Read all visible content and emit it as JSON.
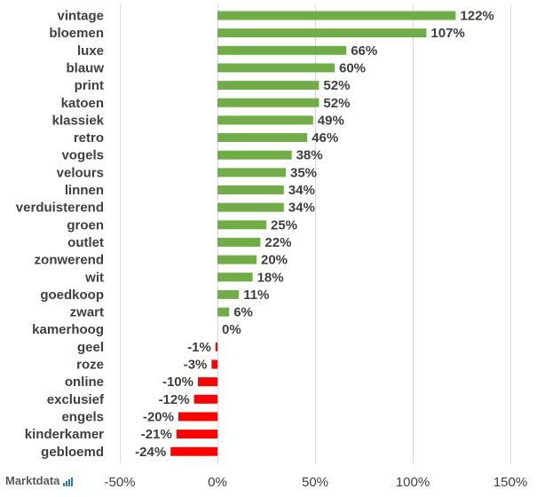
{
  "brand": {
    "name": "Marktdata",
    "accent": "#2e75b6"
  },
  "colors": {
    "positive": "#70ad47",
    "negative": "#ff0000"
  },
  "chart_data": {
    "type": "bar",
    "orientation": "horizontal",
    "title": "",
    "xlabel": "",
    "ylabel": "",
    "xlim": [
      -50,
      150
    ],
    "x_ticks": [
      -50,
      0,
      50,
      100,
      150
    ],
    "x_tick_labels": [
      "-50%",
      "0%",
      "50%",
      "100%",
      "150%"
    ],
    "grid": true,
    "legend": "none",
    "categories": [
      "vintage",
      "bloemen",
      "luxe",
      "blauw",
      "print",
      "katoen",
      "klassiek",
      "retro",
      "vogels",
      "velours",
      "linnen",
      "verduisterend",
      "groen",
      "outlet",
      "zonwerend",
      "wit",
      "goedkoop",
      "zwart",
      "kamerhoog",
      "geel",
      "roze",
      "online",
      "exclusief",
      "engels",
      "kinderkamer",
      "gebloemd"
    ],
    "values": [
      122,
      107,
      66,
      60,
      52,
      52,
      49,
      46,
      38,
      35,
      34,
      34,
      25,
      22,
      20,
      18,
      11,
      6,
      0,
      -1,
      -3,
      -10,
      -12,
      -20,
      -21,
      -24
    ],
    "value_labels": [
      "122%",
      "107%",
      "66%",
      "60%",
      "52%",
      "52%",
      "49%",
      "46%",
      "38%",
      "35%",
      "34%",
      "34%",
      "25%",
      "22%",
      "20%",
      "18%",
      "11%",
      "6%",
      "0%",
      "-1%",
      "-3%",
      "-10%",
      "-12%",
      "-20%",
      "-21%",
      "-24%"
    ]
  }
}
